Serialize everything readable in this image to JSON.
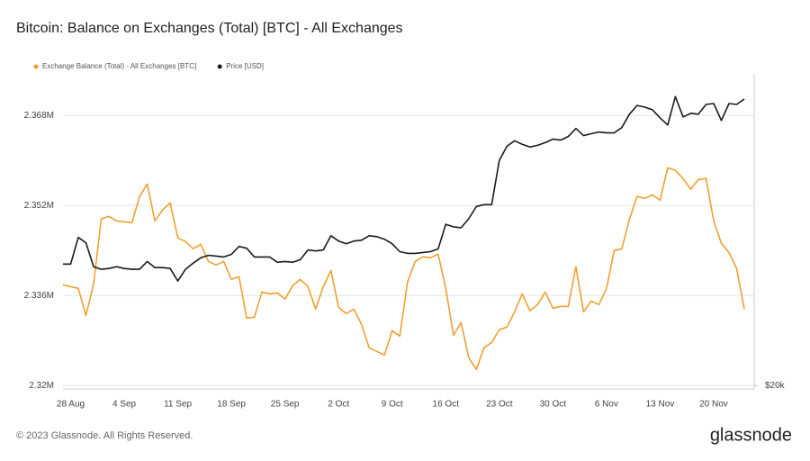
{
  "chart_data": {
    "type": "line",
    "title": "Bitcoin: Balance on Exchanges (Total) [BTC] - All Exchanges",
    "footer": "© 2023 Glassnode. All Rights Reserved.",
    "brand": "glassnode",
    "categories": [
      null,
      "28 Aug",
      null,
      null,
      null,
      null,
      null,
      null,
      "4 Sep",
      null,
      null,
      null,
      null,
      null,
      null,
      "11 Sep",
      null,
      null,
      null,
      null,
      null,
      null,
      "18 Sep",
      null,
      null,
      null,
      null,
      null,
      null,
      "25 Sep",
      null,
      null,
      null,
      null,
      null,
      null,
      "2 Oct",
      null,
      null,
      null,
      null,
      null,
      null,
      "9 Oct",
      null,
      null,
      null,
      null,
      null,
      null,
      "16 Oct",
      null,
      null,
      null,
      null,
      null,
      null,
      "23 Oct",
      null,
      null,
      null,
      null,
      null,
      null,
      "30 Oct",
      null,
      null,
      null,
      null,
      null,
      null,
      "6 Nov",
      null,
      null,
      null,
      null,
      null,
      null,
      "13 Nov",
      null,
      null,
      null,
      null,
      null,
      null,
      "20 Nov",
      null,
      null,
      null,
      null
    ],
    "series": [
      {
        "name": "Exchange Balance (Total) - All Exchanges [BTC]",
        "color": "#f0a030",
        "axis": "y",
        "values": [
          2337920,
          2337600,
          2337280,
          2332480,
          2338080,
          2349600,
          2350080,
          2349280,
          2349120,
          2348960,
          2353600,
          2355840,
          2349280,
          2351200,
          2352480,
          2346240,
          2345600,
          2344320,
          2345120,
          2342080,
          2341440,
          2342080,
          2338880,
          2339360,
          2332000,
          2332160,
          2336640,
          2336320,
          2336480,
          2335360,
          2337760,
          2338880,
          2337600,
          2333600,
          2337600,
          2340480,
          2333920,
          2332800,
          2333600,
          2330880,
          2326720,
          2326080,
          2325440,
          2329760,
          2328800,
          2338400,
          2342080,
          2342880,
          2342720,
          2343360,
          2337280,
          2328960,
          2331200,
          2324960,
          2322880,
          2326720,
          2327680,
          2329920,
          2330400,
          2333120,
          2336320,
          2333280,
          2334400,
          2336640,
          2333760,
          2334080,
          2334080,
          2341120,
          2333120,
          2335040,
          2334400,
          2337280,
          2344000,
          2344320,
          2349600,
          2353600,
          2353280,
          2353920,
          2352960,
          2358720,
          2358240,
          2356800,
          2354880,
          2356640,
          2356800,
          2349280,
          2345280,
          2343680,
          2340800,
          2333600
        ]
      },
      {
        "name": "Price [USD]",
        "color": "#1a1a1a",
        "axis": "y2",
        "values": [
          26100,
          26100,
          27670,
          27350,
          25950,
          25800,
          25850,
          25950,
          25850,
          25800,
          25800,
          26250,
          25900,
          25900,
          25850,
          25150,
          25800,
          26150,
          26460,
          26610,
          26560,
          26510,
          26660,
          27130,
          27020,
          26510,
          26510,
          26510,
          26200,
          26250,
          26200,
          26350,
          26920,
          26860,
          26920,
          27770,
          27450,
          27290,
          27450,
          27500,
          27770,
          27720,
          27560,
          27290,
          26820,
          26720,
          26720,
          26770,
          26820,
          26980,
          28480,
          28320,
          28260,
          28820,
          29610,
          29730,
          29730,
          32760,
          33790,
          34200,
          33930,
          33730,
          33860,
          34060,
          34320,
          34250,
          34520,
          35130,
          34590,
          34730,
          34860,
          34790,
          34790,
          35200,
          36250,
          36950,
          36810,
          36600,
          35960,
          35400,
          37670,
          36030,
          36320,
          36250,
          37030,
          37100,
          35750,
          37100,
          37030,
          37470
        ]
      }
    ],
    "ylim": [
      2319400,
      2375400
    ],
    "yticks": [
      {
        "value": 2320000,
        "label": "2.32M"
      },
      {
        "value": 2336000,
        "label": "2.336M"
      },
      {
        "value": 2352000,
        "label": "2.352M"
      },
      {
        "value": 2368000,
        "label": "2.368M"
      }
    ],
    "y2lim": [
      19850,
      39600
    ],
    "y2log": true,
    "y2ticks": [
      {
        "value": 20000,
        "label": "$20k"
      }
    ],
    "grid": true,
    "legend": "top-left"
  }
}
